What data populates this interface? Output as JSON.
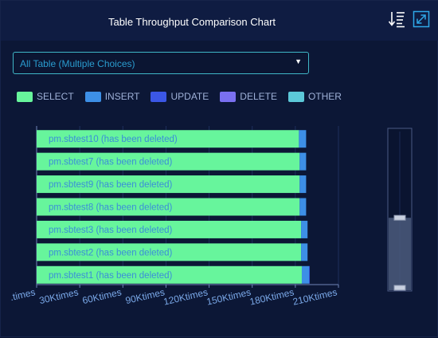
{
  "header": {
    "title": "Table Throughput Comparison Chart",
    "sort_icon": "sort-descending-icon",
    "expand_icon": "expand-icon"
  },
  "filter": {
    "selected": "All Table (Multiple Choices)"
  },
  "colors": {
    "background": "#0c1736",
    "header": "#0f1c42",
    "select": "#67f59c",
    "insert": "#3d8fe6",
    "update": "#3b57e6",
    "delete": "#7a70f0",
    "other": "#5cc8d8"
  },
  "chart_data": {
    "type": "bar",
    "orientation": "horizontal",
    "stacked": true,
    "categories": [
      "pm.sbtest10 (has been deleted)",
      "pm.sbtest7 (has been deleted)",
      "pm.sbtest9 (has been deleted)",
      "pm.sbtest8 (has been deleted)",
      "pm.sbtest3 (has been deleted)",
      "pm.sbtest2 (has been deleted)",
      "pm.sbtest1 (has been deleted)"
    ],
    "series": [
      {
        "name": "SELECT",
        "color": "#67f59c",
        "values": [
          182500,
          183000,
          183000,
          183000,
          184000,
          184000,
          184500
        ]
      },
      {
        "name": "INSERT",
        "color": "#3d8fe6",
        "values": [
          5000,
          4500,
          4500,
          4500,
          4500,
          4500,
          5000
        ]
      },
      {
        "name": "UPDATE",
        "color": "#3b57e6",
        "values": [
          0,
          0,
          0,
          0,
          0,
          0,
          500
        ]
      },
      {
        "name": "DELETE",
        "color": "#7a70f0",
        "values": [
          0,
          0,
          0,
          0,
          0,
          0,
          0
        ]
      },
      {
        "name": "OTHER",
        "color": "#5cc8d8",
        "values": [
          0,
          0,
          0,
          0,
          0,
          0,
          0
        ]
      }
    ],
    "xlim": [
      0,
      210000
    ],
    "x_ticks": [
      0,
      30000,
      60000,
      90000,
      120000,
      150000,
      180000,
      210000
    ],
    "x_tick_labels": [
      ".times",
      "30Ktimes",
      "60Ktimes",
      "90Ktimes",
      "120Ktimes",
      "150Ktimes",
      "180Ktimes",
      "210Ktimes"
    ],
    "grid": true,
    "legend": "top-left",
    "zoom_window": {
      "start": 0.55,
      "end": 0.68
    }
  }
}
